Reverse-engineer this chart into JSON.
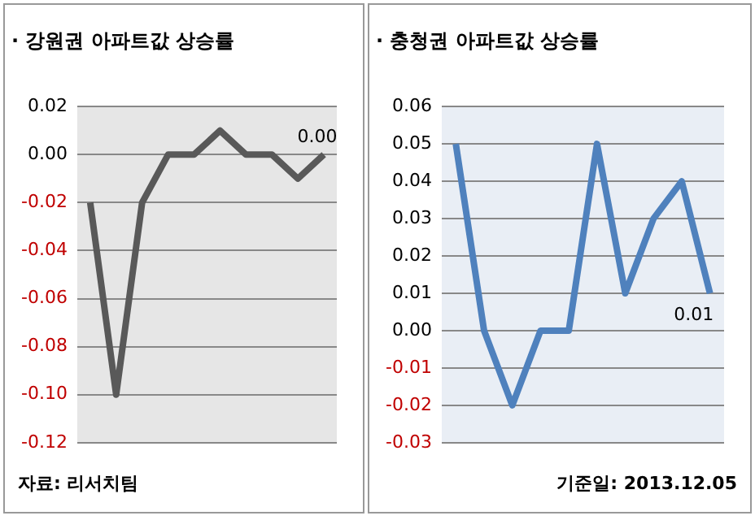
{
  "chart_data": [
    {
      "type": "line",
      "title": "· 강원권 아파트값 상승률",
      "categories": [
        null,
        null,
        null,
        null,
        null,
        null,
        null,
        null,
        null,
        null
      ],
      "series": [
        {
          "color": "#595959",
          "values": [
            -0.02,
            -0.1,
            -0.02,
            0,
            0,
            0.01,
            0,
            0,
            -0.01,
            0
          ],
          "value_labels": [
            null,
            null,
            null,
            null,
            null,
            null,
            null,
            null,
            null,
            "0.00"
          ]
        }
      ],
      "ylim": [
        -0.12,
        0.02
      ],
      "yticks": [
        {
          "value": -0.12,
          "label": "-0.12"
        },
        {
          "value": -0.1,
          "label": "-0.10"
        },
        {
          "value": -0.08,
          "label": "-0.08"
        },
        {
          "value": -0.06,
          "label": "-0.06"
        },
        {
          "value": -0.04,
          "label": "-0.04"
        },
        {
          "value": -0.02,
          "label": "-0.02"
        },
        {
          "value": 0,
          "label": "0.00"
        },
        {
          "value": 0.02,
          "label": "0.02"
        }
      ],
      "grid": "y",
      "legend": false,
      "marker": "none",
      "tick_labels": "y",
      "annotations": [
        "자료: 리서치팀"
      ]
    },
    {
      "type": "line",
      "title": "· 충청권 아파트값 상승률",
      "categories": [
        null,
        null,
        null,
        null,
        null,
        null,
        null,
        null,
        null,
        null
      ],
      "series": [
        {
          "color": "#4f81bd",
          "values": [
            0.05,
            0,
            -0.02,
            0,
            0,
            0.05,
            0.01,
            0.03,
            0.04,
            0.01
          ],
          "value_labels": [
            null,
            null,
            null,
            null,
            null,
            null,
            null,
            null,
            null,
            "0.01"
          ]
        }
      ],
      "ylim": [
        -0.03,
        0.06
      ],
      "yticks": [
        {
          "value": -0.03,
          "label": "-0.03"
        },
        {
          "value": -0.02,
          "label": "-0.02"
        },
        {
          "value": -0.01,
          "label": "-0.01"
        },
        {
          "value": 0,
          "label": "0.00"
        },
        {
          "value": 0.01,
          "label": "0.01"
        },
        {
          "value": 0.02,
          "label": "0.02"
        },
        {
          "value": 0.03,
          "label": "0.03"
        },
        {
          "value": 0.04,
          "label": "0.04"
        },
        {
          "value": 0.05,
          "label": "0.05"
        },
        {
          "value": 0.06,
          "label": "0.06"
        }
      ],
      "grid": "y",
      "legend": false,
      "marker": "none",
      "tick_labels": "y",
      "annotations": [
        "기준일: 2013.12.05"
      ]
    }
  ]
}
